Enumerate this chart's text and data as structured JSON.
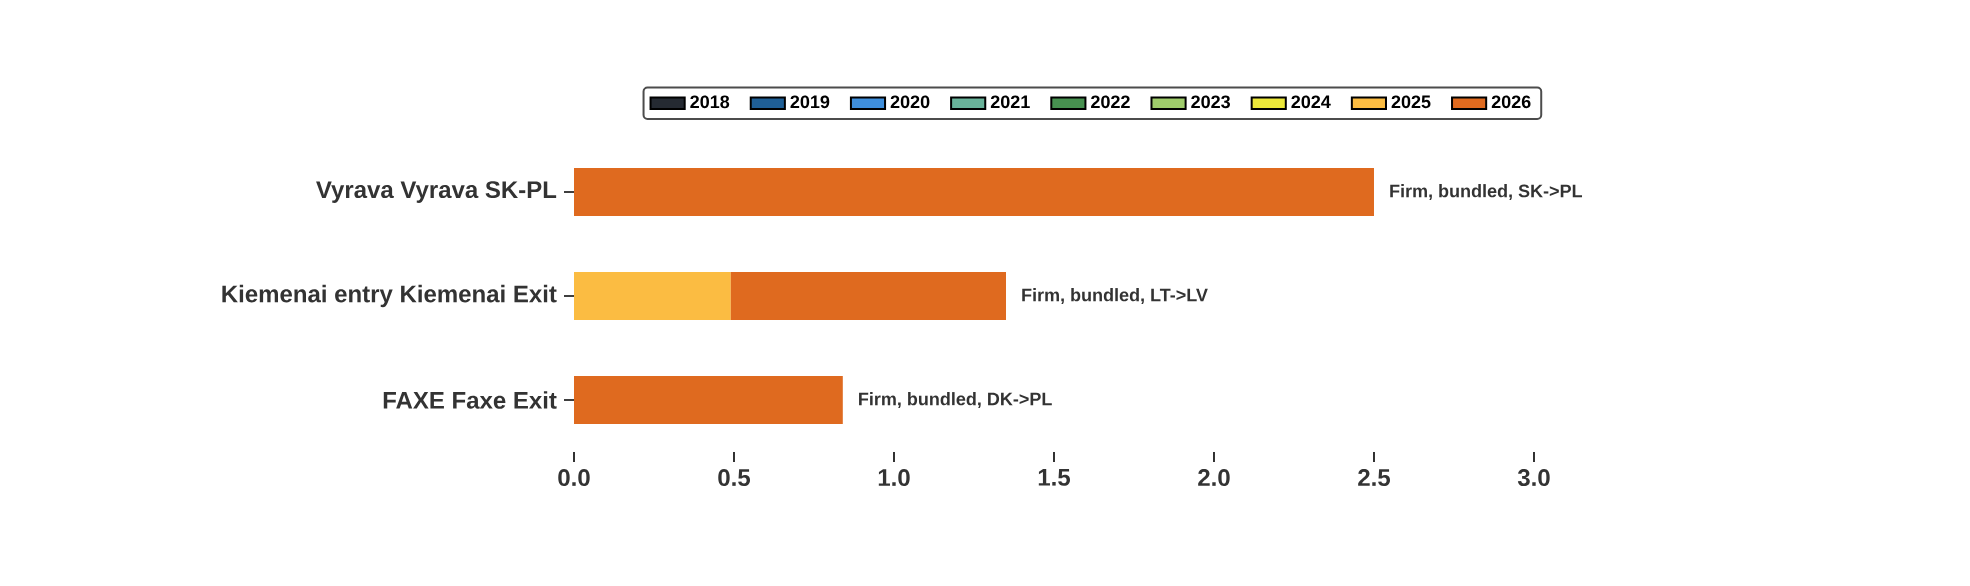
{
  "chart_data": {
    "type": "bar",
    "orientation": "horizontal",
    "stacked": true,
    "legend": "top",
    "categories": [
      "Vyrava Vyrava SK-PL",
      "Kiemenai entry Kiemenai Exit",
      "FAXE Faxe Exit"
    ],
    "series": [
      {
        "name": "2018",
        "color": "#252a32",
        "values": [
          null,
          null,
          null
        ]
      },
      {
        "name": "2019",
        "color": "#1f5f96",
        "values": [
          null,
          null,
          null
        ]
      },
      {
        "name": "2020",
        "color": "#3f8fdc",
        "values": [
          null,
          null,
          null
        ]
      },
      {
        "name": "2021",
        "color": "#69b39a",
        "values": [
          null,
          null,
          null
        ]
      },
      {
        "name": "2022",
        "color": "#479150",
        "values": [
          null,
          null,
          null
        ]
      },
      {
        "name": "2023",
        "color": "#9fcc6b",
        "values": [
          null,
          null,
          null
        ]
      },
      {
        "name": "2024",
        "color": "#ece83a",
        "values": [
          null,
          null,
          null
        ]
      },
      {
        "name": "2025",
        "color": "#fbbc42",
        "values": [
          null,
          0.49,
          null
        ]
      },
      {
        "name": "2026",
        "color": "#df6a1f",
        "values": [
          2.5,
          0.86,
          0.84
        ]
      }
    ],
    "xlim": [
      0,
      3
    ],
    "xticks": [
      {
        "value": 0,
        "label": "0.0"
      },
      {
        "value": 0.5,
        "label": "0.5"
      },
      {
        "value": 1,
        "label": "1.0"
      },
      {
        "value": 1.5,
        "label": "1.5"
      },
      {
        "value": 2,
        "label": "2.0"
      },
      {
        "value": 2.5,
        "label": "2.5"
      },
      {
        "value": 3,
        "label": "3.0"
      }
    ],
    "annotations": [
      {
        "text": "Firm, bundled, SK->PL",
        "x": 2.5,
        "y": "Vyrava Vyrava SK-PL"
      },
      {
        "text": "Firm, bundled, LT->LV",
        "x": 1.35,
        "y": "Kiemenai entry Kiemenai Exit"
      },
      {
        "text": "Firm, bundled, DK->PL",
        "x": 0.84,
        "y": "FAXE Faxe Exit"
      }
    ]
  }
}
